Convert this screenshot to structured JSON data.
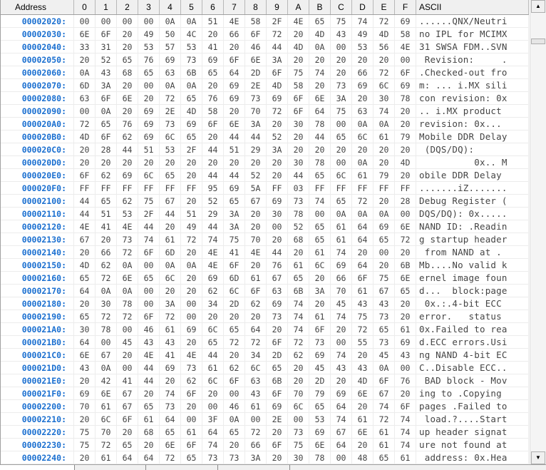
{
  "header": {
    "address_label": "Address",
    "columns": [
      "0",
      "1",
      "2",
      "3",
      "4",
      "5",
      "6",
      "7",
      "8",
      "9",
      "A",
      "B",
      "C",
      "D",
      "E",
      "F"
    ],
    "ascii_label": "ASCII"
  },
  "rows": [
    {
      "address": "00002020:",
      "bytes": [
        "00",
        "00",
        "00",
        "00",
        "0A",
        "0A",
        "51",
        "4E",
        "58",
        "2F",
        "4E",
        "65",
        "75",
        "74",
        "72",
        "69"
      ],
      "ascii": "......QNX/Neutri"
    },
    {
      "address": "00002030:",
      "bytes": [
        "6E",
        "6F",
        "20",
        "49",
        "50",
        "4C",
        "20",
        "66",
        "6F",
        "72",
        "20",
        "4D",
        "43",
        "49",
        "4D",
        "58"
      ],
      "ascii": "no IPL for MCIMX"
    },
    {
      "address": "00002040:",
      "bytes": [
        "33",
        "31",
        "20",
        "53",
        "57",
        "53",
        "41",
        "20",
        "46",
        "44",
        "4D",
        "0A",
        "00",
        "53",
        "56",
        "4E"
      ],
      "ascii": "31 SWSA FDM..SVN"
    },
    {
      "address": "00002050:",
      "bytes": [
        "20",
        "52",
        "65",
        "76",
        "69",
        "73",
        "69",
        "6F",
        "6E",
        "3A",
        "20",
        "20",
        "20",
        "20",
        "20",
        "00"
      ],
      "ascii": " Revision:     ."
    },
    {
      "address": "00002060:",
      "bytes": [
        "0A",
        "43",
        "68",
        "65",
        "63",
        "6B",
        "65",
        "64",
        "2D",
        "6F",
        "75",
        "74",
        "20",
        "66",
        "72",
        "6F"
      ],
      "ascii": ".Checked-out fro"
    },
    {
      "address": "00002070:",
      "bytes": [
        "6D",
        "3A",
        "20",
        "00",
        "0A",
        "0A",
        "20",
        "69",
        "2E",
        "4D",
        "58",
        "20",
        "73",
        "69",
        "6C",
        "69"
      ],
      "ascii": "m: ... i.MX sili"
    },
    {
      "address": "00002080:",
      "bytes": [
        "63",
        "6F",
        "6E",
        "20",
        "72",
        "65",
        "76",
        "69",
        "73",
        "69",
        "6F",
        "6E",
        "3A",
        "20",
        "30",
        "78"
      ],
      "ascii": "con revision: 0x"
    },
    {
      "address": "00002090:",
      "bytes": [
        "00",
        "0A",
        "20",
        "69",
        "2E",
        "4D",
        "58",
        "20",
        "70",
        "72",
        "6F",
        "64",
        "75",
        "63",
        "74",
        "20"
      ],
      "ascii": ".. i.MX product "
    },
    {
      "address": "000020A0:",
      "bytes": [
        "72",
        "65",
        "76",
        "69",
        "73",
        "69",
        "6F",
        "6E",
        "3A",
        "20",
        "30",
        "78",
        "00",
        "0A",
        "0A",
        "20"
      ],
      "ascii": "revision: 0x... "
    },
    {
      "address": "000020B0:",
      "bytes": [
        "4D",
        "6F",
        "62",
        "69",
        "6C",
        "65",
        "20",
        "44",
        "44",
        "52",
        "20",
        "44",
        "65",
        "6C",
        "61",
        "79"
      ],
      "ascii": "Mobile DDR Delay"
    },
    {
      "address": "000020C0:",
      "bytes": [
        "20",
        "28",
        "44",
        "51",
        "53",
        "2F",
        "44",
        "51",
        "29",
        "3A",
        "20",
        "20",
        "20",
        "20",
        "20",
        "20"
      ],
      "ascii": " (DQS/DQ):      "
    },
    {
      "address": "000020D0:",
      "bytes": [
        "20",
        "20",
        "20",
        "20",
        "20",
        "20",
        "20",
        "20",
        "20",
        "20",
        "30",
        "78",
        "00",
        "0A",
        "20",
        "4D"
      ],
      "ascii": "          0x.. M"
    },
    {
      "address": "000020E0:",
      "bytes": [
        "6F",
        "62",
        "69",
        "6C",
        "65",
        "20",
        "44",
        "44",
        "52",
        "20",
        "44",
        "65",
        "6C",
        "61",
        "79",
        "20"
      ],
      "ascii": "obile DDR Delay "
    },
    {
      "address": "000020F0:",
      "bytes": [
        "FF",
        "FF",
        "FF",
        "FF",
        "FF",
        "FF",
        "95",
        "69",
        "5A",
        "FF",
        "03",
        "FF",
        "FF",
        "FF",
        "FF",
        "FF"
      ],
      "ascii": ".......iZ......."
    },
    {
      "address": "00002100:",
      "bytes": [
        "44",
        "65",
        "62",
        "75",
        "67",
        "20",
        "52",
        "65",
        "67",
        "69",
        "73",
        "74",
        "65",
        "72",
        "20",
        "28"
      ],
      "ascii": "Debug Register ("
    },
    {
      "address": "00002110:",
      "bytes": [
        "44",
        "51",
        "53",
        "2F",
        "44",
        "51",
        "29",
        "3A",
        "20",
        "30",
        "78",
        "00",
        "0A",
        "0A",
        "0A",
        "00"
      ],
      "ascii": "DQS/DQ): 0x....."
    },
    {
      "address": "00002120:",
      "bytes": [
        "4E",
        "41",
        "4E",
        "44",
        "20",
        "49",
        "44",
        "3A",
        "20",
        "00",
        "52",
        "65",
        "61",
        "64",
        "69",
        "6E"
      ],
      "ascii": "NAND ID: .Readin"
    },
    {
      "address": "00002130:",
      "bytes": [
        "67",
        "20",
        "73",
        "74",
        "61",
        "72",
        "74",
        "75",
        "70",
        "20",
        "68",
        "65",
        "61",
        "64",
        "65",
        "72"
      ],
      "ascii": "g startup header"
    },
    {
      "address": "00002140:",
      "bytes": [
        "20",
        "66",
        "72",
        "6F",
        "6D",
        "20",
        "4E",
        "41",
        "4E",
        "44",
        "20",
        "61",
        "74",
        "20",
        "00",
        "20"
      ],
      "ascii": " from NAND at . "
    },
    {
      "address": "00002150:",
      "bytes": [
        "4D",
        "62",
        "0A",
        "00",
        "0A",
        "0A",
        "4E",
        "6F",
        "20",
        "76",
        "61",
        "6C",
        "69",
        "64",
        "20",
        "6B"
      ],
      "ascii": "Mb....No valid k"
    },
    {
      "address": "00002160:",
      "bytes": [
        "65",
        "72",
        "6E",
        "65",
        "6C",
        "20",
        "69",
        "6D",
        "61",
        "67",
        "65",
        "20",
        "66",
        "6F",
        "75",
        "6E"
      ],
      "ascii": "ernel image foun"
    },
    {
      "address": "00002170:",
      "bytes": [
        "64",
        "0A",
        "0A",
        "00",
        "20",
        "20",
        "62",
        "6C",
        "6F",
        "63",
        "6B",
        "3A",
        "70",
        "61",
        "67",
        "65"
      ],
      "ascii": "d...  block:page"
    },
    {
      "address": "00002180:",
      "bytes": [
        "20",
        "30",
        "78",
        "00",
        "3A",
        "00",
        "34",
        "2D",
        "62",
        "69",
        "74",
        "20",
        "45",
        "43",
        "43",
        "20"
      ],
      "ascii": " 0x.:.4-bit ECC "
    },
    {
      "address": "00002190:",
      "bytes": [
        "65",
        "72",
        "72",
        "6F",
        "72",
        "00",
        "20",
        "20",
        "20",
        "73",
        "74",
        "61",
        "74",
        "75",
        "73",
        "20"
      ],
      "ascii": "error.   status "
    },
    {
      "address": "000021A0:",
      "bytes": [
        "30",
        "78",
        "00",
        "46",
        "61",
        "69",
        "6C",
        "65",
        "64",
        "20",
        "74",
        "6F",
        "20",
        "72",
        "65",
        "61"
      ],
      "ascii": "0x.Failed to rea"
    },
    {
      "address": "000021B0:",
      "bytes": [
        "64",
        "00",
        "45",
        "43",
        "43",
        "20",
        "65",
        "72",
        "72",
        "6F",
        "72",
        "73",
        "00",
        "55",
        "73",
        "69"
      ],
      "ascii": "d.ECC errors.Usi"
    },
    {
      "address": "000021C0:",
      "bytes": [
        "6E",
        "67",
        "20",
        "4E",
        "41",
        "4E",
        "44",
        "20",
        "34",
        "2D",
        "62",
        "69",
        "74",
        "20",
        "45",
        "43"
      ],
      "ascii": "ng NAND 4-bit EC"
    },
    {
      "address": "000021D0:",
      "bytes": [
        "43",
        "0A",
        "00",
        "44",
        "69",
        "73",
        "61",
        "62",
        "6C",
        "65",
        "20",
        "45",
        "43",
        "43",
        "0A",
        "00"
      ],
      "ascii": "C..Disable ECC.."
    },
    {
      "address": "000021E0:",
      "bytes": [
        "20",
        "42",
        "41",
        "44",
        "20",
        "62",
        "6C",
        "6F",
        "63",
        "6B",
        "20",
        "2D",
        "20",
        "4D",
        "6F",
        "76"
      ],
      "ascii": " BAD block - Mov"
    },
    {
      "address": "000021F0:",
      "bytes": [
        "69",
        "6E",
        "67",
        "20",
        "74",
        "6F",
        "20",
        "00",
        "43",
        "6F",
        "70",
        "79",
        "69",
        "6E",
        "67",
        "20"
      ],
      "ascii": "ing to .Copying "
    },
    {
      "address": "00002200:",
      "bytes": [
        "70",
        "61",
        "67",
        "65",
        "73",
        "20",
        "00",
        "46",
        "61",
        "69",
        "6C",
        "65",
        "64",
        "20",
        "74",
        "6F"
      ],
      "ascii": "pages .Failed to"
    },
    {
      "address": "00002210:",
      "bytes": [
        "20",
        "6C",
        "6F",
        "61",
        "64",
        "00",
        "3F",
        "0A",
        "00",
        "2E",
        "00",
        "53",
        "74",
        "61",
        "72",
        "74"
      ],
      "ascii": " load.?....Start"
    },
    {
      "address": "00002220:",
      "bytes": [
        "75",
        "70",
        "20",
        "68",
        "65",
        "61",
        "64",
        "65",
        "72",
        "20",
        "73",
        "69",
        "67",
        "6E",
        "61",
        "74"
      ],
      "ascii": "up header signat"
    },
    {
      "address": "00002230:",
      "bytes": [
        "75",
        "72",
        "65",
        "20",
        "6E",
        "6F",
        "74",
        "20",
        "66",
        "6F",
        "75",
        "6E",
        "64",
        "20",
        "61",
        "74"
      ],
      "ascii": "ure not found at"
    },
    {
      "address": "00002240:",
      "bytes": [
        "20",
        "61",
        "64",
        "64",
        "72",
        "65",
        "73",
        "73",
        "3A",
        "20",
        "30",
        "78",
        "00",
        "48",
        "65",
        "61"
      ],
      "ascii": " address: 0x.Hea"
    }
  ],
  "scrollbar": {
    "up_icon": "▲",
    "down_icon": "▼"
  },
  "tabs": [
    {
      "label": ""
    },
    {
      "label": ""
    },
    {
      "label": ""
    },
    {
      "label": ""
    }
  ],
  "colors": {
    "address": "#1a6fd0",
    "hex_text": "#444444",
    "header_bg": "#f0f0f0"
  }
}
